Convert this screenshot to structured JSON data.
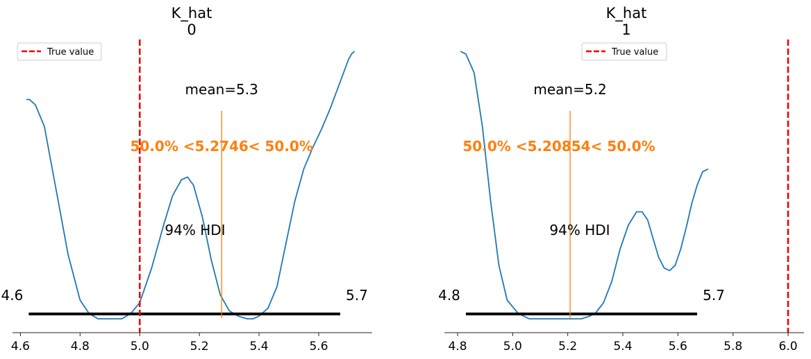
{
  "chart_data": [
    {
      "type": "density",
      "title": "K_hat\n0",
      "title_lines": [
        "K_hat",
        "0"
      ],
      "xlim": [
        4.55,
        5.78
      ],
      "xticks": [
        4.6,
        4.8,
        5.0,
        5.2,
        5.4,
        5.6
      ],
      "xtick_labels": [
        "4.6",
        "4.8",
        "5.0",
        "5.2",
        "5.4",
        "5.6"
      ],
      "density": {
        "x": [
          4.62,
          4.63,
          4.65,
          4.68,
          4.72,
          4.76,
          4.8,
          4.83,
          4.86,
          4.9,
          4.94,
          4.97,
          5.0,
          5.04,
          5.08,
          5.11,
          5.14,
          5.16,
          5.18,
          5.21,
          5.24,
          5.27,
          5.3,
          5.33,
          5.36,
          5.38,
          5.4,
          5.43,
          5.46,
          5.49,
          5.52,
          5.55,
          5.58,
          5.61,
          5.64,
          5.67,
          5.7,
          5.71,
          5.72
        ],
        "y": [
          0.82,
          0.82,
          0.8,
          0.72,
          0.48,
          0.24,
          0.07,
          0.02,
          0.0,
          0.0,
          0.0,
          0.02,
          0.06,
          0.19,
          0.35,
          0.46,
          0.52,
          0.53,
          0.5,
          0.38,
          0.22,
          0.09,
          0.03,
          0.01,
          0.0,
          0.0,
          0.01,
          0.04,
          0.12,
          0.28,
          0.44,
          0.56,
          0.64,
          0.71,
          0.79,
          0.88,
          0.97,
          0.99,
          1.0
        ]
      },
      "reference": {
        "label": "True value",
        "value": 5.0
      },
      "mean_label": "mean=5.3",
      "point_estimate": 5.2746,
      "ref_annotation": "50.0% <5.2746< 50.0%",
      "hdi_label": "94% HDI",
      "hdi": [
        4.6,
        5.7
      ],
      "hdi_low_label": "4.6",
      "hdi_high_label": "5.7",
      "legend": {
        "label": "True value",
        "placement": "upper-left"
      }
    },
    {
      "type": "density",
      "title": "K_hat\n1",
      "title_lines": [
        "K_hat",
        "1"
      ],
      "xlim": [
        4.75,
        6.06
      ],
      "xticks": [
        4.8,
        5.0,
        5.2,
        5.4,
        5.6,
        5.8,
        6.0
      ],
      "xtick_labels": [
        "4.8",
        "5.0",
        "5.2",
        "5.4",
        "5.6",
        "5.8",
        "6.0"
      ],
      "density": {
        "x": [
          4.81,
          4.83,
          4.86,
          4.89,
          4.92,
          4.95,
          4.98,
          5.02,
          5.06,
          5.1,
          5.15,
          5.2,
          5.25,
          5.28,
          5.3,
          5.33,
          5.36,
          5.39,
          5.42,
          5.45,
          5.47,
          5.49,
          5.51,
          5.53,
          5.55,
          5.57,
          5.59,
          5.61,
          5.63,
          5.65,
          5.67,
          5.69,
          5.71
        ],
        "y": [
          1.0,
          0.99,
          0.92,
          0.72,
          0.44,
          0.2,
          0.07,
          0.02,
          0.0,
          0.0,
          0.0,
          0.0,
          0.0,
          0.01,
          0.02,
          0.06,
          0.14,
          0.26,
          0.35,
          0.4,
          0.4,
          0.37,
          0.3,
          0.23,
          0.19,
          0.18,
          0.2,
          0.26,
          0.34,
          0.43,
          0.5,
          0.55,
          0.56
        ]
      },
      "reference": {
        "label": "True value",
        "value": 6.0
      },
      "mean_label": "mean=5.2",
      "point_estimate": 5.20854,
      "ref_annotation": "50.0% <5.20854< 50.0%",
      "hdi_label": "94% HDI",
      "hdi": [
        4.8,
        5.7
      ],
      "hdi_low_label": "4.8",
      "hdi_high_label": "5.7",
      "legend": {
        "label": "True value",
        "placement": "upper-center"
      }
    }
  ],
  "colors": {
    "density": "#1f77b4",
    "reference": "#ee0000",
    "point_estimate": "#ff7f0e",
    "hdi": "#000000",
    "axis": "#222222"
  }
}
